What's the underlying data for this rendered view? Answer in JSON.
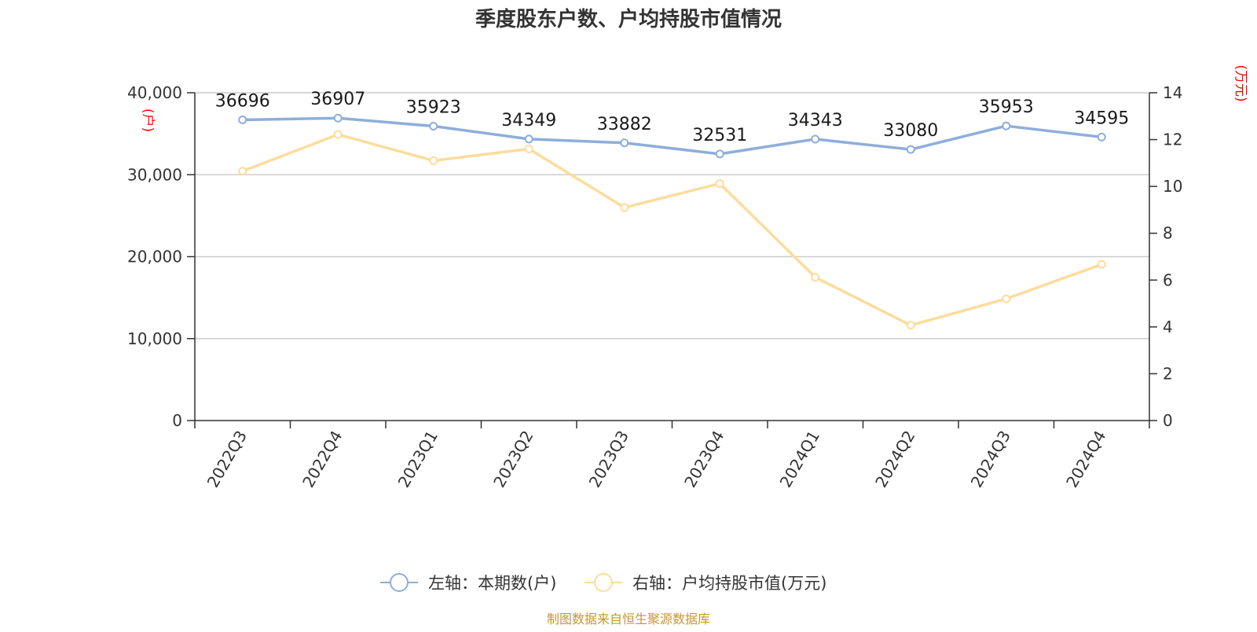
{
  "chart_data": {
    "type": "line",
    "title": "季度股东户数、户均持股市值情况",
    "categories": [
      "2022Q3",
      "2022Q4",
      "2023Q1",
      "2023Q2",
      "2023Q3",
      "2023Q4",
      "2024Q1",
      "2024Q2",
      "2024Q3",
      "2024Q4"
    ],
    "left_axis": {
      "unit_label": "(户)",
      "ylim": [
        0,
        40000
      ],
      "ticks": [
        {
          "value": 0,
          "label": "0"
        },
        {
          "value": 10000,
          "label": "10,000"
        },
        {
          "value": 20000,
          "label": "20,000"
        },
        {
          "value": 30000,
          "label": "30,000"
        },
        {
          "value": 40000,
          "label": "40,000"
        }
      ]
    },
    "right_axis": {
      "unit_label": "(万元)",
      "ylim": [
        0,
        14
      ],
      "ticks": [
        {
          "value": 0,
          "label": "0"
        },
        {
          "value": 2,
          "label": "2"
        },
        {
          "value": 4,
          "label": "4"
        },
        {
          "value": 6,
          "label": "6"
        },
        {
          "value": 8,
          "label": "8"
        },
        {
          "value": 10,
          "label": "10"
        },
        {
          "value": 12,
          "label": "12"
        },
        {
          "value": 14,
          "label": "14"
        }
      ]
    },
    "series": [
      {
        "name": "左轴：本期数(户)",
        "axis": "left",
        "color": "#8eaedb",
        "show_labels": true,
        "values": [
          36696,
          36907,
          35923,
          34349,
          33882,
          32531,
          34343,
          33080,
          35953,
          34595
        ]
      },
      {
        "name": "右轴：户均持股市值(万元)",
        "axis": "right",
        "color": "#fddc9c",
        "show_labels": false,
        "values": [
          10.65,
          12.22,
          11.1,
          11.6,
          9.1,
          10.12,
          6.12,
          4.07,
          5.2,
          6.67
        ]
      }
    ],
    "grid": true,
    "legend_position": "bottom"
  },
  "source": "制图数据来自恒生聚源数据库"
}
